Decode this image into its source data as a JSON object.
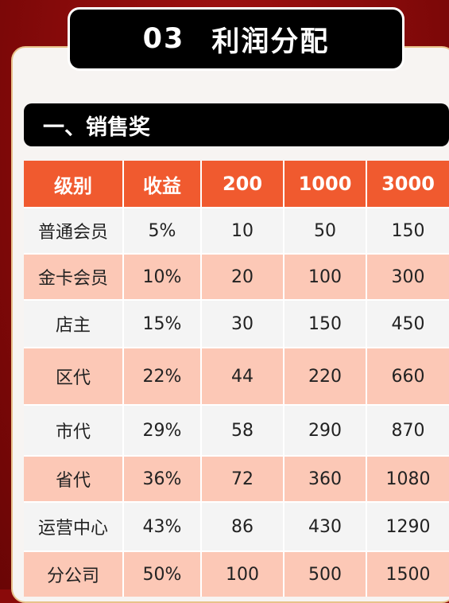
{
  "header": {
    "number": "03",
    "title": "利润分配"
  },
  "section": {
    "title": "一、销售奖"
  },
  "table": {
    "columns": [
      "级别",
      "收益",
      "200",
      "1000",
      "3000"
    ],
    "rows": [
      [
        "普通会员",
        "5%",
        "10",
        "50",
        "150"
      ],
      [
        "金卡会员",
        "10%",
        "20",
        "100",
        "300"
      ],
      [
        "店主",
        "15%",
        "30",
        "150",
        "450"
      ],
      [
        "区代",
        "22%",
        "44",
        "220",
        "660"
      ],
      [
        "市代",
        "29%",
        "58",
        "290",
        "870"
      ],
      [
        "省代",
        "36%",
        "72",
        "360",
        "1080"
      ],
      [
        "运营中心",
        "43%",
        "86",
        "430",
        "1290"
      ],
      [
        "分公司",
        "50%",
        "100",
        "500",
        "1500"
      ]
    ]
  },
  "colors": {
    "header_bg": "#f05a2f",
    "row_odd": "#f4f4f4",
    "row_even": "#fcc8b6",
    "background": "#8a0a0a",
    "title_bg": "#000000"
  }
}
